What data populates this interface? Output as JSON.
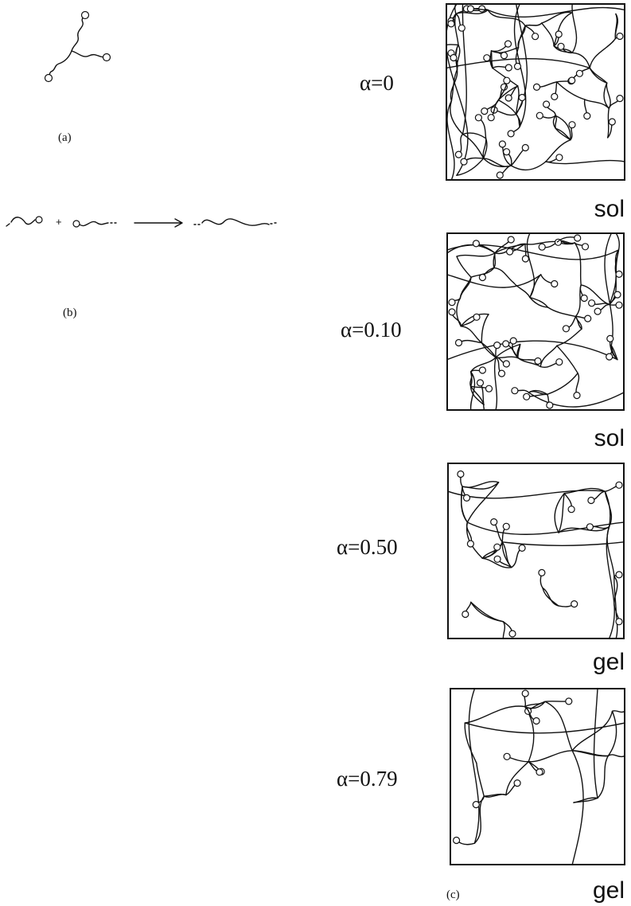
{
  "labels": {
    "a": "(a)",
    "b": "(b)",
    "c": "(c)",
    "plus": "+"
  },
  "panels": [
    {
      "alpha": "α=0",
      "state": "sol"
    },
    {
      "alpha": "α=0.10",
      "state": "sol"
    },
    {
      "alpha": "α=0.50",
      "state": "gel"
    },
    {
      "alpha": "α=0.79",
      "state": "gel"
    }
  ]
}
